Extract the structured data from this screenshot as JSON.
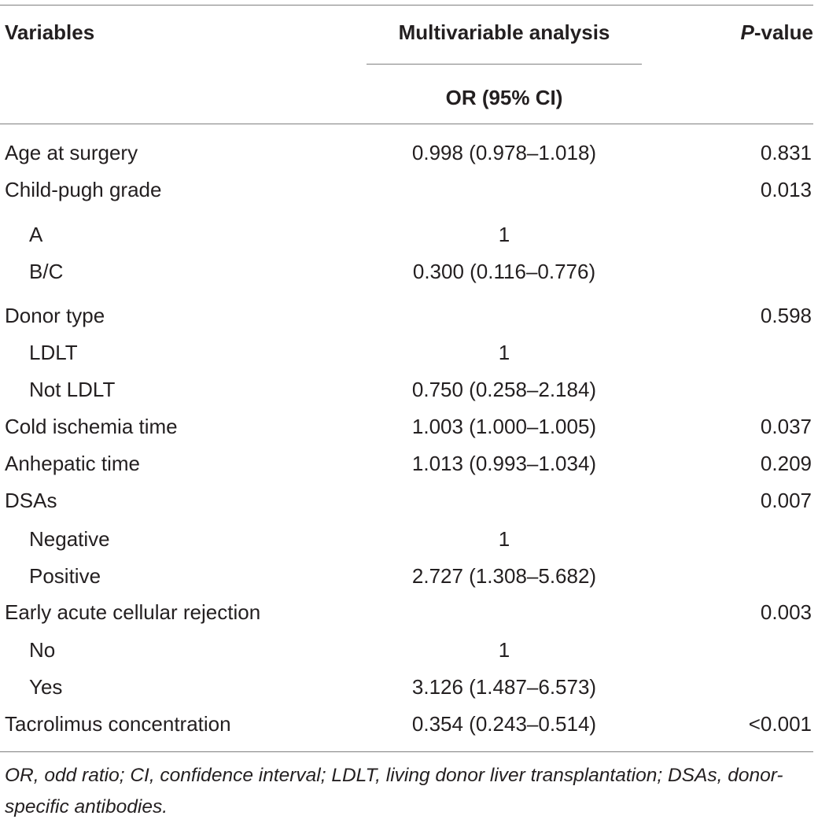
{
  "table": {
    "headers": {
      "variables": "Variables",
      "analysis": "Multivariable analysis",
      "p_value_italic": "P",
      "p_value_rest": "-value",
      "or_ci": "OR (95% CI)"
    },
    "rows": [
      {
        "label": "Age at surgery",
        "or": "0.998 (0.978–1.018)",
        "p": "0.831",
        "sub": false
      },
      {
        "label": "Child-pugh grade",
        "or": "",
        "p": "0.013",
        "sub": false
      },
      {
        "label": "A",
        "or": "1",
        "p": "",
        "sub": true
      },
      {
        "label": "B/C",
        "or": "0.300 (0.116–0.776)",
        "p": "",
        "sub": true
      },
      {
        "label": "Donor type",
        "or": "",
        "p": "0.598",
        "sub": false
      },
      {
        "label": "LDLT",
        "or": "1",
        "p": "",
        "sub": true
      },
      {
        "label": "Not LDLT",
        "or": "0.750 (0.258–2.184)",
        "p": "",
        "sub": true
      },
      {
        "label": "Cold ischemia time",
        "or": "1.003 (1.000–1.005)",
        "p": "0.037",
        "sub": false
      },
      {
        "label": "Anhepatic time",
        "or": "1.013 (0.993–1.034)",
        "p": "0.209",
        "sub": false
      },
      {
        "label": "DSAs",
        "or": "",
        "p": "0.007",
        "sub": false
      },
      {
        "label": "Negative",
        "or": "1",
        "p": "",
        "sub": true
      },
      {
        "label": "Positive",
        "or": "2.727 (1.308–5.682)",
        "p": "",
        "sub": true
      },
      {
        "label": "Early acute cellular rejection",
        "or": "",
        "p": "0.003",
        "sub": false
      },
      {
        "label": "No",
        "or": "1",
        "p": "",
        "sub": true
      },
      {
        "label": "Yes",
        "or": "3.126 (1.487–6.573)",
        "p": "",
        "sub": true
      },
      {
        "label": "Tacrolimus concentration",
        "or": "0.354 (0.243–0.514)",
        "p": "<0.001",
        "sub": false
      }
    ],
    "footnote": "OR, odd ratio; CI, confidence interval; LDLT, living donor liver transplantation; DSAs, donor-specific antibodies."
  }
}
